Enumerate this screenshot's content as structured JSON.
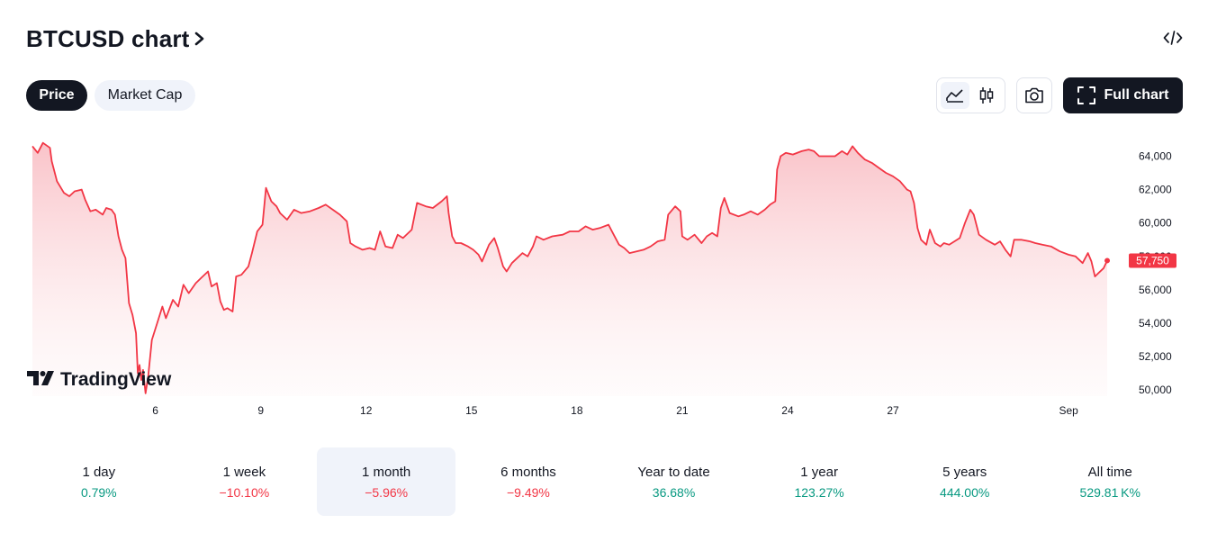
{
  "header": {
    "title": "BTCUSD chart"
  },
  "tabs": [
    {
      "label": "Price",
      "active": true
    },
    {
      "label": "Market Cap",
      "active": false
    }
  ],
  "toolbar": {
    "full_chart_label": "Full chart",
    "icons": [
      "area-chart-icon",
      "candles-icon",
      "camera-icon",
      "fullscreen-icon",
      "embed-code-icon"
    ]
  },
  "watermark": "TradingView",
  "colors": {
    "line": "#f23645",
    "fill_top": "#f9c0c6",
    "positive": "#089981",
    "negative": "#f23645",
    "dark": "#131722",
    "pill_bg": "#f0f3fa"
  },
  "chart_data": {
    "type": "area",
    "x_ticks": [
      {
        "label": "6",
        "day": 6
      },
      {
        "label": "9",
        "day": 9
      },
      {
        "label": "12",
        "day": 12
      },
      {
        "label": "15",
        "day": 15
      },
      {
        "label": "18",
        "day": 18
      },
      {
        "label": "21",
        "day": 21
      },
      {
        "label": "24",
        "day": 24
      },
      {
        "label": "27",
        "day": 27
      },
      {
        "label": "Sep",
        "day": 32
      }
    ],
    "y_ticks": [
      {
        "label": "50,000",
        "value": 50000
      },
      {
        "label": "52,000",
        "value": 52000
      },
      {
        "label": "54,000",
        "value": 54000
      },
      {
        "label": "56,000",
        "value": 56000
      },
      {
        "label": "58,000",
        "value": 58000
      },
      {
        "label": "60,000",
        "value": 60000
      },
      {
        "label": "62,000",
        "value": 62000
      },
      {
        "label": "64,000",
        "value": 64000
      }
    ],
    "ylim": [
      49700,
      65700
    ],
    "last_price": {
      "label": "57,750",
      "value": 57750
    },
    "series": [
      {
        "values": [
          [
            2.5,
            64600
          ],
          [
            2.65,
            64200
          ],
          [
            2.8,
            64800
          ],
          [
            3.0,
            64500
          ],
          [
            3.05,
            63700
          ],
          [
            3.2,
            62500
          ],
          [
            3.4,
            61800
          ],
          [
            3.55,
            61600
          ],
          [
            3.7,
            61900
          ],
          [
            3.9,
            62000
          ],
          [
            4.0,
            61400
          ],
          [
            4.15,
            60700
          ],
          [
            4.3,
            60800
          ],
          [
            4.5,
            60500
          ],
          [
            4.6,
            60900
          ],
          [
            4.75,
            60800
          ],
          [
            4.85,
            60500
          ],
          [
            4.95,
            59200
          ],
          [
            5.05,
            58400
          ],
          [
            5.15,
            57900
          ],
          [
            5.25,
            55200
          ],
          [
            5.35,
            54500
          ],
          [
            5.45,
            53400
          ],
          [
            5.5,
            51000
          ],
          [
            5.55,
            51500
          ],
          [
            5.6,
            50600
          ],
          [
            5.65,
            51200
          ],
          [
            5.72,
            49800
          ],
          [
            5.8,
            50900
          ],
          [
            5.9,
            53000
          ],
          [
            6.05,
            54000
          ],
          [
            6.2,
            55000
          ],
          [
            6.3,
            54300
          ],
          [
            6.5,
            55400
          ],
          [
            6.65,
            55000
          ],
          [
            6.8,
            56300
          ],
          [
            6.95,
            55800
          ],
          [
            7.15,
            56400
          ],
          [
            7.3,
            56700
          ],
          [
            7.5,
            57100
          ],
          [
            7.6,
            56200
          ],
          [
            7.75,
            56400
          ],
          [
            7.85,
            55300
          ],
          [
            7.95,
            54800
          ],
          [
            8.05,
            54900
          ],
          [
            8.2,
            54700
          ],
          [
            8.3,
            56800
          ],
          [
            8.45,
            56900
          ],
          [
            8.65,
            57400
          ],
          [
            8.75,
            58200
          ],
          [
            8.9,
            59500
          ],
          [
            9.05,
            59900
          ],
          [
            9.15,
            62100
          ],
          [
            9.3,
            61300
          ],
          [
            9.45,
            61000
          ],
          [
            9.55,
            60600
          ],
          [
            9.75,
            60200
          ],
          [
            9.95,
            60800
          ],
          [
            10.15,
            60600
          ],
          [
            10.4,
            60700
          ],
          [
            10.65,
            60900
          ],
          [
            10.85,
            61100
          ],
          [
            11.05,
            60800
          ],
          [
            11.25,
            60500
          ],
          [
            11.45,
            60100
          ],
          [
            11.55,
            58800
          ],
          [
            11.7,
            58600
          ],
          [
            11.9,
            58400
          ],
          [
            12.1,
            58500
          ],
          [
            12.25,
            58400
          ],
          [
            12.4,
            59500
          ],
          [
            12.55,
            58600
          ],
          [
            12.75,
            58500
          ],
          [
            12.9,
            59300
          ],
          [
            13.05,
            59100
          ],
          [
            13.3,
            59600
          ],
          [
            13.45,
            61200
          ],
          [
            13.7,
            61000
          ],
          [
            13.9,
            60900
          ],
          [
            14.15,
            61300
          ],
          [
            14.3,
            61600
          ],
          [
            14.35,
            60600
          ],
          [
            14.45,
            59200
          ],
          [
            14.55,
            58800
          ],
          [
            14.7,
            58800
          ],
          [
            14.9,
            58600
          ],
          [
            15.05,
            58400
          ],
          [
            15.2,
            58100
          ],
          [
            15.3,
            57700
          ],
          [
            15.4,
            58200
          ],
          [
            15.5,
            58700
          ],
          [
            15.65,
            59100
          ],
          [
            15.75,
            58500
          ],
          [
            15.9,
            57400
          ],
          [
            16.0,
            57100
          ],
          [
            16.15,
            57600
          ],
          [
            16.3,
            57900
          ],
          [
            16.45,
            58200
          ],
          [
            16.6,
            58000
          ],
          [
            16.75,
            58600
          ],
          [
            16.85,
            59200
          ],
          [
            17.05,
            59000
          ],
          [
            17.3,
            59200
          ],
          [
            17.6,
            59300
          ],
          [
            17.8,
            59500
          ],
          [
            18.05,
            59500
          ],
          [
            18.25,
            59800
          ],
          [
            18.45,
            59600
          ],
          [
            18.65,
            59700
          ],
          [
            18.9,
            59900
          ],
          [
            19.05,
            59300
          ],
          [
            19.2,
            58700
          ],
          [
            19.35,
            58500
          ],
          [
            19.5,
            58200
          ],
          [
            19.7,
            58300
          ],
          [
            19.9,
            58400
          ],
          [
            20.1,
            58600
          ],
          [
            20.3,
            58900
          ],
          [
            20.5,
            59000
          ],
          [
            20.6,
            60500
          ],
          [
            20.8,
            61000
          ],
          [
            20.95,
            60700
          ],
          [
            21.0,
            59200
          ],
          [
            21.15,
            59000
          ],
          [
            21.35,
            59300
          ],
          [
            21.55,
            58800
          ],
          [
            21.7,
            59200
          ],
          [
            21.85,
            59400
          ],
          [
            22.0,
            59200
          ],
          [
            22.1,
            60900
          ],
          [
            22.2,
            61500
          ],
          [
            22.35,
            60600
          ],
          [
            22.6,
            60400
          ],
          [
            22.75,
            60500
          ],
          [
            22.95,
            60700
          ],
          [
            23.15,
            60500
          ],
          [
            23.35,
            60800
          ],
          [
            23.5,
            61100
          ],
          [
            23.65,
            61300
          ],
          [
            23.7,
            63200
          ],
          [
            23.8,
            64000
          ],
          [
            23.95,
            64200
          ],
          [
            24.15,
            64100
          ],
          [
            24.4,
            64300
          ],
          [
            24.6,
            64400
          ],
          [
            24.75,
            64300
          ],
          [
            24.9,
            64000
          ],
          [
            25.1,
            64000
          ],
          [
            25.35,
            64000
          ],
          [
            25.55,
            64300
          ],
          [
            25.7,
            64100
          ],
          [
            25.85,
            64600
          ],
          [
            26.0,
            64200
          ],
          [
            26.2,
            63800
          ],
          [
            26.4,
            63600
          ],
          [
            26.6,
            63300
          ],
          [
            26.8,
            63000
          ],
          [
            27.0,
            62800
          ],
          [
            27.2,
            62500
          ],
          [
            27.4,
            62000
          ],
          [
            27.5,
            61900
          ],
          [
            27.6,
            61200
          ],
          [
            27.7,
            59700
          ],
          [
            27.8,
            59000
          ],
          [
            27.95,
            58700
          ],
          [
            28.05,
            59600
          ],
          [
            28.2,
            58800
          ],
          [
            28.35,
            58600
          ],
          [
            28.45,
            58800
          ],
          [
            28.6,
            58700
          ],
          [
            28.75,
            58900
          ],
          [
            28.9,
            59100
          ],
          [
            29.05,
            60000
          ],
          [
            29.2,
            60800
          ],
          [
            29.3,
            60500
          ],
          [
            29.45,
            59300
          ],
          [
            29.65,
            59000
          ],
          [
            29.9,
            58700
          ],
          [
            30.05,
            58900
          ],
          [
            30.2,
            58400
          ],
          [
            30.35,
            58000
          ],
          [
            30.45,
            59000
          ],
          [
            30.65,
            59000
          ],
          [
            30.9,
            58900
          ],
          [
            31.05,
            58800
          ],
          [
            31.25,
            58700
          ],
          [
            31.5,
            58600
          ],
          [
            31.75,
            58300
          ],
          [
            32.0,
            58100
          ],
          [
            32.2,
            58000
          ],
          [
            32.4,
            57600
          ],
          [
            32.55,
            58200
          ],
          [
            32.65,
            57700
          ],
          [
            32.75,
            56800
          ],
          [
            32.85,
            57000
          ],
          [
            33.0,
            57300
          ],
          [
            33.1,
            57750
          ]
        ]
      }
    ]
  },
  "periods": [
    {
      "label": "1 day",
      "value": "0.79%",
      "trend": "pos",
      "selected": false
    },
    {
      "label": "1 week",
      "value": "−10.10%",
      "trend": "neg",
      "selected": false
    },
    {
      "label": "1 month",
      "value": "−5.96%",
      "trend": "neg",
      "selected": true
    },
    {
      "label": "6 months",
      "value": "−9.49%",
      "trend": "neg",
      "selected": false
    },
    {
      "label": "Year to date",
      "value": "36.68%",
      "trend": "pos",
      "selected": false
    },
    {
      "label": "1 year",
      "value": "123.27%",
      "trend": "pos",
      "selected": false
    },
    {
      "label": "5 years",
      "value": "444.00%",
      "trend": "pos",
      "selected": false
    },
    {
      "label": "All time",
      "value": "529.81 K%",
      "trend": "pos",
      "selected": false
    }
  ]
}
